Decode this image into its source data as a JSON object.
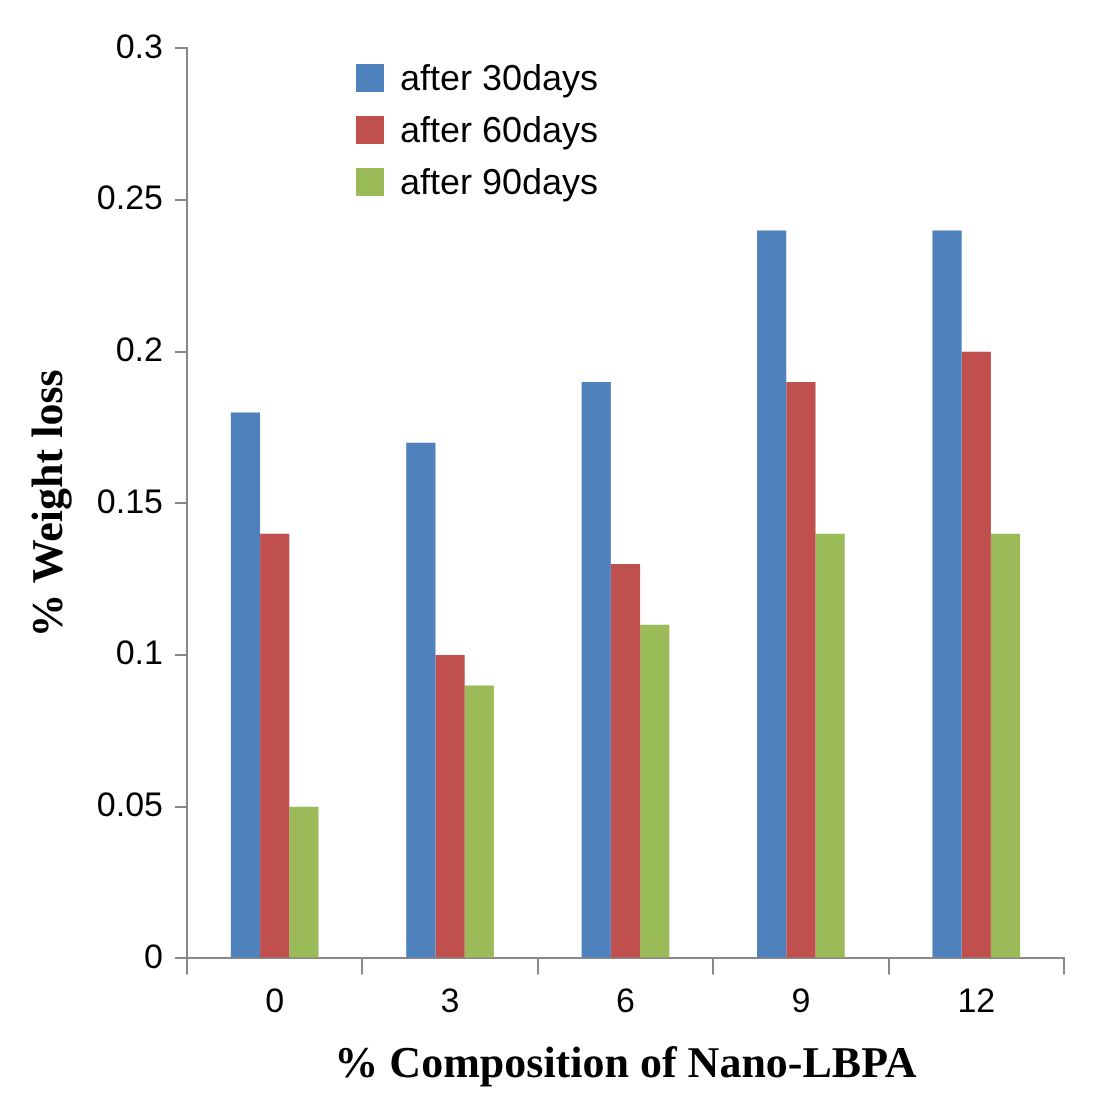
{
  "chart_data": {
    "type": "bar",
    "xlabel": "% Composition of Nano-LBPA",
    "ylabel": "% Weight loss",
    "categories": [
      "0",
      "3",
      "6",
      "9",
      "12"
    ],
    "series": [
      {
        "name": "after 30days",
        "color": "#4f81bd",
        "values": [
          0.18,
          0.17,
          0.19,
          0.24,
          0.24
        ]
      },
      {
        "name": "after 60days",
        "color": "#c0504d",
        "values": [
          0.14,
          0.1,
          0.13,
          0.19,
          0.2
        ]
      },
      {
        "name": "after 90days",
        "color": "#9bbb59",
        "values": [
          0.05,
          0.09,
          0.11,
          0.14,
          0.14
        ]
      }
    ],
    "ylim": [
      0,
      0.3
    ],
    "yticks": [
      0,
      0.05,
      0.1,
      0.15,
      0.2,
      0.25,
      0.3
    ],
    "grid": false,
    "legend": "top left"
  }
}
